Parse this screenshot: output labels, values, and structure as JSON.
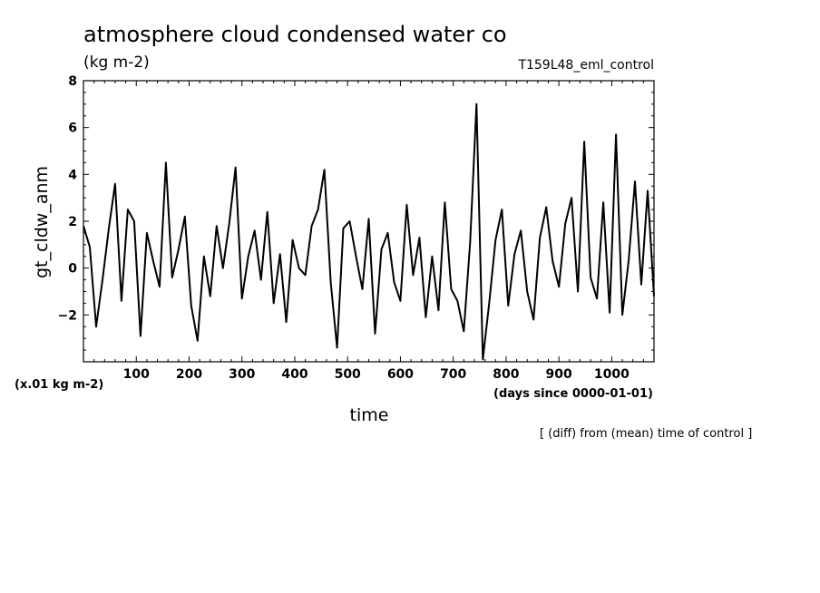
{
  "header": {
    "title": "atmosphere cloud condensed water co",
    "units": "(kg m-2)",
    "run_name": "T159L48_eml_control"
  },
  "footer": {
    "scale_note": "(x.01 kg m-2)",
    "x_unit_note": "(days since 0000-01-01)",
    "operation_note": "[ (diff) from (mean) time of control ]"
  },
  "chart_data": {
    "type": "line",
    "title": "atmosphere cloud condensed water co",
    "xlabel": "time",
    "ylabel": "gt_cldw_anm",
    "xlim": [
      0,
      1080
    ],
    "ylim": [
      -4,
      8
    ],
    "xticks": [
      100,
      200,
      300,
      400,
      500,
      600,
      700,
      800,
      900,
      1000
    ],
    "yticks": [
      -2,
      0,
      2,
      4,
      6,
      8
    ],
    "grid": false,
    "legend": "none",
    "series": [
      {
        "color": "#000000",
        "x": [
          0,
          12,
          24,
          36,
          48,
          60,
          72,
          84,
          96,
          108,
          120,
          132,
          144,
          156,
          168,
          180,
          192,
          204,
          216,
          228,
          240,
          252,
          264,
          276,
          288,
          300,
          312,
          324,
          336,
          348,
          360,
          372,
          384,
          396,
          408,
          420,
          432,
          444,
          456,
          468,
          480,
          492,
          504,
          516,
          528,
          540,
          552,
          564,
          576,
          588,
          600,
          612,
          624,
          636,
          648,
          660,
          672,
          684,
          696,
          708,
          720,
          732,
          744,
          756,
          768,
          780,
          792,
          804,
          816,
          828,
          840,
          852,
          864,
          876,
          888,
          900,
          912,
          924,
          936,
          948,
          960,
          972,
          984,
          996,
          1008,
          1020,
          1032,
          1044,
          1056,
          1068,
          1080
        ],
        "values": [
          1.8,
          0.9,
          -2.5,
          -0.5,
          1.7,
          3.6,
          -1.4,
          2.5,
          2.0,
          -2.9,
          1.5,
          0.3,
          -0.8,
          4.5,
          -0.4,
          0.8,
          2.2,
          -1.6,
          -3.1,
          0.5,
          -1.2,
          1.8,
          0.0,
          1.9,
          4.3,
          -1.3,
          0.5,
          1.6,
          -0.5,
          2.4,
          -1.5,
          0.6,
          -2.3,
          1.2,
          0.0,
          -0.3,
          1.8,
          2.5,
          4.2,
          -0.6,
          -3.4,
          1.7,
          2.0,
          0.5,
          -0.9,
          2.1,
          -2.8,
          0.8,
          1.5,
          -0.6,
          -1.4,
          2.7,
          -0.3,
          1.3,
          -2.1,
          0.5,
          -1.8,
          2.8,
          -0.9,
          -1.4,
          -2.7,
          1.1,
          7.0,
          -3.9,
          -1.5,
          1.2,
          2.5,
          -1.6,
          0.6,
          1.6,
          -1.0,
          -2.2,
          1.3,
          2.6,
          0.3,
          -0.8,
          1.9,
          3.0,
          -1.0,
          5.4,
          -0.4,
          -1.3,
          2.8,
          -1.9,
          5.7,
          -2.0,
          0.3,
          3.7,
          -0.7,
          3.3,
          -1.2
        ]
      }
    ]
  }
}
